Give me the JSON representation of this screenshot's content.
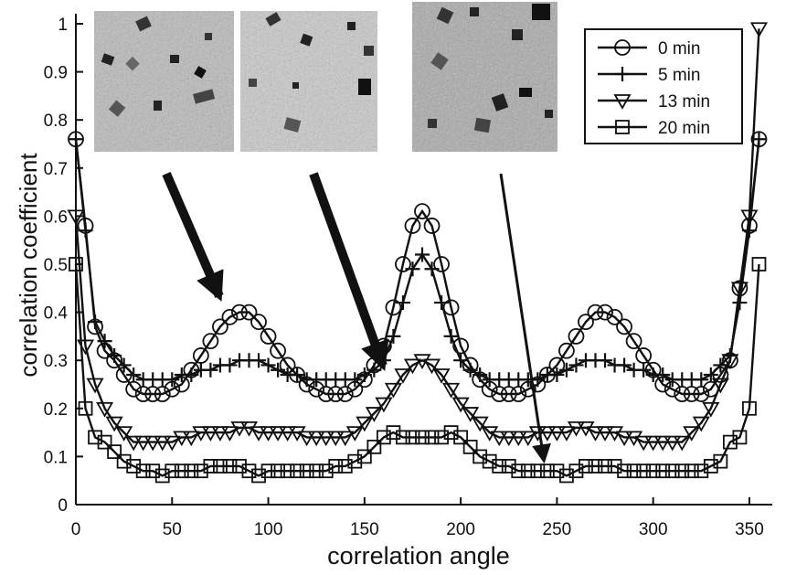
{
  "chart_data": {
    "type": "line",
    "xlabel": "correlation angle",
    "ylabel": "correlation coefficient",
    "xlim": [
      0,
      360
    ],
    "ylim": [
      0,
      1
    ],
    "xticks": [
      0,
      50,
      100,
      150,
      200,
      250,
      300,
      350
    ],
    "yticks": [
      0,
      0.1,
      0.2,
      0.3,
      0.4,
      0.5,
      0.6,
      0.7,
      0.8,
      0.9,
      1
    ],
    "ytick_labels": [
      "0",
      "0.1",
      "0.2",
      "0.3",
      "0.4",
      "0.5",
      "0.6",
      "0.7",
      "0.8",
      "0.9",
      "1"
    ],
    "grid": false,
    "legend_position": "top-right",
    "series": [
      {
        "name": "0 min",
        "marker": "circle",
        "x": [
          0,
          5,
          10,
          15,
          20,
          25,
          30,
          35,
          40,
          45,
          50,
          55,
          60,
          65,
          70,
          75,
          80,
          85,
          90,
          95,
          100,
          105,
          110,
          115,
          120,
          125,
          130,
          135,
          140,
          145,
          150,
          155,
          160,
          165,
          170,
          175,
          180,
          185,
          190,
          195,
          200,
          205,
          210,
          215,
          220,
          225,
          230,
          235,
          240,
          245,
          250,
          255,
          260,
          265,
          270,
          275,
          280,
          285,
          290,
          295,
          300,
          305,
          310,
          315,
          320,
          325,
          330,
          335,
          340,
          345,
          350,
          355
        ],
        "y": [
          0.76,
          0.58,
          0.37,
          0.32,
          0.3,
          0.27,
          0.24,
          0.23,
          0.23,
          0.23,
          0.24,
          0.25,
          0.28,
          0.31,
          0.34,
          0.37,
          0.39,
          0.4,
          0.4,
          0.38,
          0.35,
          0.32,
          0.29,
          0.27,
          0.25,
          0.24,
          0.23,
          0.23,
          0.23,
          0.24,
          0.26,
          0.29,
          0.33,
          0.41,
          0.5,
          0.58,
          0.61,
          0.58,
          0.5,
          0.41,
          0.33,
          0.29,
          0.26,
          0.24,
          0.23,
          0.23,
          0.23,
          0.24,
          0.25,
          0.27,
          0.29,
          0.32,
          0.35,
          0.38,
          0.4,
          0.4,
          0.39,
          0.37,
          0.34,
          0.31,
          0.28,
          0.25,
          0.24,
          0.23,
          0.23,
          0.23,
          0.24,
          0.27,
          0.3,
          0.45,
          0.58,
          0.76
        ]
      },
      {
        "name": "5 min",
        "marker": "plus",
        "x": [
          0,
          5,
          10,
          15,
          20,
          25,
          30,
          35,
          40,
          45,
          50,
          55,
          60,
          65,
          70,
          75,
          80,
          85,
          90,
          95,
          100,
          105,
          110,
          115,
          120,
          125,
          130,
          135,
          140,
          145,
          150,
          155,
          160,
          165,
          170,
          175,
          180,
          185,
          190,
          195,
          200,
          205,
          210,
          215,
          220,
          225,
          230,
          235,
          240,
          245,
          250,
          255,
          260,
          265,
          270,
          275,
          280,
          285,
          290,
          295,
          300,
          305,
          310,
          315,
          320,
          325,
          330,
          335,
          340,
          345,
          350,
          355
        ],
        "y": [
          0.76,
          0.57,
          0.38,
          0.34,
          0.31,
          0.29,
          0.27,
          0.26,
          0.26,
          0.26,
          0.26,
          0.27,
          0.27,
          0.28,
          0.28,
          0.29,
          0.29,
          0.3,
          0.3,
          0.3,
          0.29,
          0.28,
          0.27,
          0.27,
          0.26,
          0.26,
          0.26,
          0.26,
          0.26,
          0.26,
          0.27,
          0.28,
          0.3,
          0.35,
          0.42,
          0.49,
          0.52,
          0.49,
          0.42,
          0.35,
          0.3,
          0.28,
          0.27,
          0.26,
          0.26,
          0.26,
          0.26,
          0.26,
          0.26,
          0.27,
          0.27,
          0.28,
          0.29,
          0.3,
          0.3,
          0.3,
          0.29,
          0.29,
          0.28,
          0.28,
          0.27,
          0.27,
          0.26,
          0.26,
          0.26,
          0.26,
          0.27,
          0.29,
          0.31,
          0.42,
          0.57,
          0.76
        ]
      },
      {
        "name": "13 min",
        "marker": "triangle-down",
        "x": [
          0,
          5,
          10,
          15,
          20,
          25,
          30,
          35,
          40,
          45,
          50,
          55,
          60,
          65,
          70,
          75,
          80,
          85,
          90,
          95,
          100,
          105,
          110,
          115,
          120,
          125,
          130,
          135,
          140,
          145,
          150,
          155,
          160,
          165,
          170,
          175,
          180,
          185,
          190,
          195,
          200,
          205,
          210,
          215,
          220,
          225,
          230,
          235,
          240,
          245,
          250,
          255,
          260,
          265,
          270,
          275,
          280,
          285,
          290,
          295,
          300,
          305,
          310,
          315,
          320,
          325,
          330,
          335,
          340,
          345,
          350,
          355
        ],
        "y": [
          0.6,
          0.33,
          0.25,
          0.2,
          0.17,
          0.15,
          0.13,
          0.13,
          0.13,
          0.13,
          0.13,
          0.14,
          0.14,
          0.15,
          0.15,
          0.15,
          0.15,
          0.16,
          0.16,
          0.15,
          0.15,
          0.15,
          0.15,
          0.15,
          0.14,
          0.14,
          0.14,
          0.14,
          0.14,
          0.15,
          0.17,
          0.19,
          0.21,
          0.24,
          0.27,
          0.29,
          0.3,
          0.29,
          0.27,
          0.24,
          0.21,
          0.19,
          0.17,
          0.15,
          0.14,
          0.14,
          0.14,
          0.14,
          0.15,
          0.15,
          0.15,
          0.15,
          0.16,
          0.16,
          0.15,
          0.15,
          0.15,
          0.14,
          0.14,
          0.13,
          0.13,
          0.13,
          0.13,
          0.13,
          0.15,
          0.17,
          0.2,
          0.25,
          0.3,
          0.45,
          0.6,
          0.99
        ]
      },
      {
        "name": "20 min",
        "marker": "square",
        "x": [
          0,
          5,
          10,
          15,
          20,
          25,
          30,
          35,
          40,
          45,
          50,
          55,
          60,
          65,
          70,
          75,
          80,
          85,
          90,
          95,
          100,
          105,
          110,
          115,
          120,
          125,
          130,
          135,
          140,
          145,
          150,
          155,
          160,
          165,
          170,
          175,
          180,
          185,
          190,
          195,
          200,
          205,
          210,
          215,
          220,
          225,
          230,
          235,
          240,
          245,
          250,
          255,
          260,
          265,
          270,
          275,
          280,
          285,
          290,
          295,
          300,
          305,
          310,
          315,
          320,
          325,
          330,
          335,
          340,
          345,
          350,
          355
        ],
        "y": [
          0.5,
          0.2,
          0.14,
          0.13,
          0.11,
          0.09,
          0.08,
          0.07,
          0.07,
          0.06,
          0.07,
          0.07,
          0.07,
          0.07,
          0.08,
          0.08,
          0.08,
          0.08,
          0.07,
          0.06,
          0.07,
          0.07,
          0.07,
          0.07,
          0.07,
          0.07,
          0.07,
          0.08,
          0.08,
          0.09,
          0.1,
          0.12,
          0.14,
          0.15,
          0.14,
          0.14,
          0.14,
          0.14,
          0.14,
          0.15,
          0.14,
          0.12,
          0.1,
          0.09,
          0.08,
          0.08,
          0.07,
          0.07,
          0.07,
          0.07,
          0.07,
          0.06,
          0.07,
          0.08,
          0.08,
          0.08,
          0.08,
          0.07,
          0.07,
          0.07,
          0.07,
          0.07,
          0.07,
          0.07,
          0.07,
          0.07,
          0.08,
          0.09,
          0.13,
          0.14,
          0.2,
          0.5
        ]
      }
    ]
  }
}
